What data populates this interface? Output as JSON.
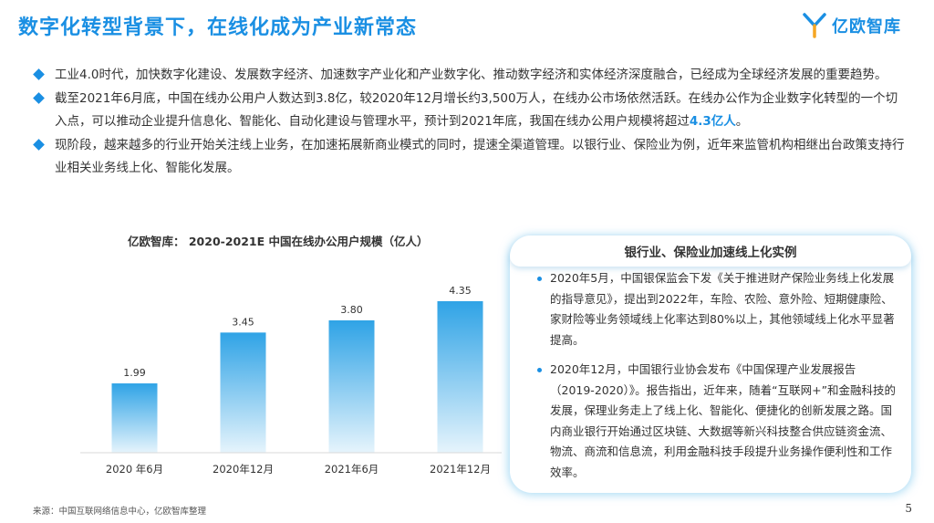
{
  "header": {
    "title": "数字化转型背景下，在线化成为产业新常态",
    "logo_text": "亿欧智库",
    "logo_icon": "yiou-logo-icon"
  },
  "bullets": [
    {
      "text": "工业4.0时代，加快数字化建设、发展数字经济、加速数字产业化和产业数字化、推动数字经济和实体经济深度融合，已经成为全球经济发展的重要趋势。"
    },
    {
      "text_before": "截至2021年6月底，中国在线办公用户人数达到3.8亿，较2020年12月增长约3,500万人，在线办公市场依然活跃。在线办公作为企业数字化转型的一个切入点，可以推动企业提升信息化、智能化、自动化建设与管理水平，预计到2021年底，我国在线办公用户规模将超过",
      "highlight": "4.3亿人",
      "text_after": "。"
    },
    {
      "text": "现阶段，越来越多的行业开始关注线上业务，在加速拓展新商业模式的同时，提速全渠道管理。以银行业、保险业为例，近年来监管机构相继出台政策支持行业相关业务线上化、智能化发展。"
    }
  ],
  "chart_data": {
    "type": "bar",
    "title": "亿欧智库：  2020-2021E 中国在线办公用户规模（亿人）",
    "categories": [
      "2020 年6月",
      "2020年12月",
      "2021年6月",
      "2021年12月"
    ],
    "values": [
      1.99,
      3.45,
      3.8,
      4.35
    ],
    "value_labels": [
      "1.99",
      "3.45",
      "3.80",
      "4.35"
    ],
    "ylim": [
      0,
      4.35
    ],
    "grid": false,
    "bar_color_top": "#2fa3e6",
    "bar_color_bottom": "#e6f4fc"
  },
  "case_box": {
    "title": "银行业、保险业加速线上化实例",
    "items": [
      "2020年5月，中国银保监会下发《关于推进财产保险业务线上化发展的指导意见》，提出到2022年，车险、农险、意外险、短期健康险、家财险等业务领域线上化率达到80%以上，其他领域线上化水平显著提高。",
      "2020年12月，中国银行业协会发布《中国保理产业发展报告（2019-2020）》。报告指出，近年来，随着“互联网+”和金融科技的发展，保理业务走上了线上化、智能化、便捷化的创新发展之路。国内商业银行开始通过区块链、大数据等新兴科技整合供应链资金流、物流、商流和信息流，利用金融科技手段提升业务操作便利性和工作效率。"
    ]
  },
  "footer": {
    "source": "来源：中国互联网络信息中心，亿欧智库整理",
    "page": "5"
  },
  "colors": {
    "accent": "#1a8fe3"
  }
}
